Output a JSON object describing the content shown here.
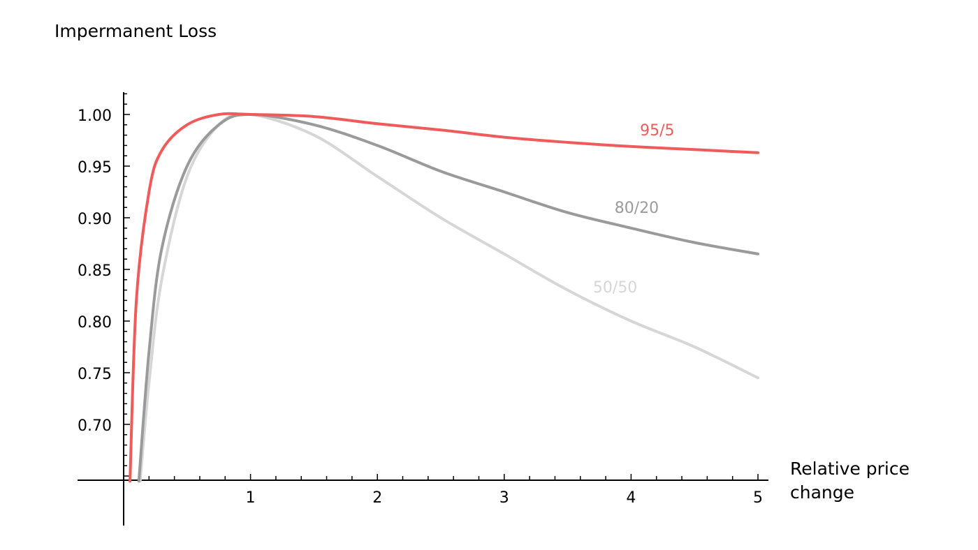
{
  "chart_data": {
    "type": "line",
    "ylabel": "Impermanent Loss",
    "xlabel": "Relative price change",
    "xlim": [
      0,
      5
    ],
    "ylim": [
      0.645,
      1.025
    ],
    "xticks": [
      1,
      2,
      3,
      4,
      5
    ],
    "yticks": [
      0.7,
      0.75,
      0.8,
      0.85,
      0.9,
      0.95,
      1.0
    ],
    "ytick_labels": [
      "0.70",
      "0.75",
      "0.80",
      "0.85",
      "0.90",
      "0.95",
      "1.00"
    ],
    "grid": false,
    "legend": "inline labels next to curves",
    "series": [
      {
        "name": "95/5",
        "weight": 0.95,
        "color": "#ef5b5b",
        "x": [
          0.05,
          0.1,
          0.2,
          0.3,
          0.5,
          0.75,
          1,
          1.5,
          2,
          2.5,
          3,
          3.5,
          4,
          4.5,
          5
        ],
        "y": [
          0.645,
          0.82,
          0.925,
          0.965,
          0.99,
          1.0,
          1.0,
          0.998,
          0.991,
          0.985,
          0.978,
          0.973,
          0.969,
          0.966,
          0.963
        ]
      },
      {
        "name": "80/20",
        "weight": 0.8,
        "color": "#9a9a9a",
        "x": [
          0.12,
          0.2,
          0.3,
          0.5,
          0.75,
          1,
          1.5,
          2,
          2.5,
          3,
          3.5,
          4,
          4.5,
          5
        ],
        "y": [
          0.645,
          0.77,
          0.87,
          0.95,
          0.99,
          1.0,
          0.99,
          0.97,
          0.945,
          0.925,
          0.905,
          0.89,
          0.876,
          0.865
        ]
      },
      {
        "name": "50/50",
        "weight": 0.5,
        "color": "#d6d6d6",
        "x": [
          0.13,
          0.2,
          0.3,
          0.5,
          0.75,
          1,
          1.5,
          2,
          2.5,
          3,
          3.5,
          4,
          4.5,
          5
        ],
        "y": [
          0.645,
          0.74,
          0.84,
          0.94,
          0.99,
          1.0,
          0.98,
          0.94,
          0.9,
          0.865,
          0.83,
          0.8,
          0.775,
          0.745
        ]
      }
    ],
    "labels": [
      {
        "text": "95/5",
        "series": 0,
        "x": 4.07,
        "y": 0.985
      },
      {
        "text": "80/20",
        "series": 1,
        "x": 3.87,
        "y": 0.91
      },
      {
        "text": "50/50",
        "series": 2,
        "x": 3.7,
        "y": 0.833
      }
    ]
  }
}
